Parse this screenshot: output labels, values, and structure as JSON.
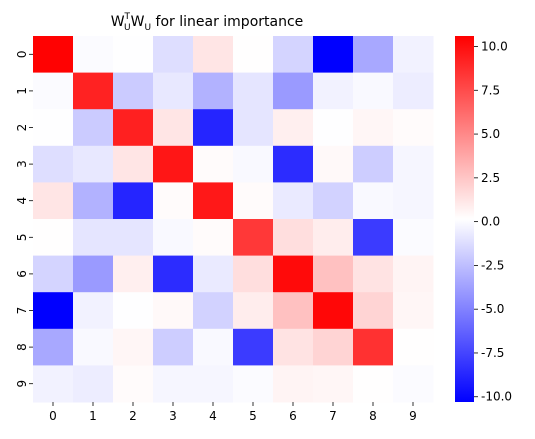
{
  "chart_data": {
    "type": "heatmap",
    "title": "W_U^T W_U for linear importance",
    "title_parts": {
      "base_w1": "W",
      "sup": "T",
      "sub1": "U",
      "base_w2": "W",
      "sub2": "U",
      "rest": " for linear importance"
    },
    "x_categories": [
      "0",
      "1",
      "2",
      "3",
      "4",
      "5",
      "6",
      "7",
      "8",
      "9"
    ],
    "y_categories": [
      "0",
      "1",
      "2",
      "3",
      "4",
      "5",
      "6",
      "7",
      "8",
      "9"
    ],
    "values": [
      [
        10.5,
        0.0,
        0.1,
        -1.2,
        1.2,
        0.2,
        -1.6,
        -10.3,
        -3.4,
        -0.4
      ],
      [
        0.0,
        9.2,
        -2.0,
        -0.8,
        -3.0,
        -0.9,
        -4.0,
        -0.4,
        -0.1,
        -0.6
      ],
      [
        0.1,
        -2.0,
        9.3,
        1.2,
        -8.8,
        -0.9,
        0.8,
        0.1,
        0.5,
        0.3
      ],
      [
        -1.2,
        -0.8,
        1.2,
        9.7,
        0.3,
        -0.1,
        -8.5,
        0.4,
        -1.9,
        -0.2
      ],
      [
        1.2,
        -3.0,
        -8.8,
        0.3,
        9.6,
        0.3,
        -0.7,
        -1.7,
        -0.1,
        -0.2
      ],
      [
        0.2,
        -0.9,
        -0.9,
        -0.1,
        0.3,
        8.3,
        1.5,
        0.9,
        -7.9,
        0.0
      ],
      [
        -1.6,
        -4.0,
        0.8,
        -8.5,
        -0.7,
        1.5,
        10.2,
        2.7,
        1.3,
        0.6
      ],
      [
        -10.3,
        -0.4,
        0.1,
        0.4,
        -1.7,
        0.9,
        2.7,
        10.3,
        1.9,
        0.5
      ],
      [
        -3.4,
        -0.1,
        0.5,
        -1.9,
        -0.1,
        -7.9,
        1.3,
        1.9,
        8.6,
        0.2
      ],
      [
        -0.4,
        -0.6,
        0.3,
        -0.2,
        -0.2,
        0.0,
        0.6,
        0.5,
        0.2,
        0.0
      ]
    ],
    "vmin": -10.3,
    "vmax": 10.6,
    "colormap": "bwr",
    "colorbar_ticks": [
      "10.0",
      "7.5",
      "5.0",
      "2.5",
      "0.0",
      "-2.5",
      "-5.0",
      "-7.5",
      "-10.0"
    ],
    "colorbar_tick_values": [
      10.0,
      7.5,
      5.0,
      2.5,
      0.0,
      -2.5,
      -5.0,
      -7.5,
      -10.0
    ],
    "colors": {
      "low": "#0000ff",
      "mid": "#ffffff",
      "high": "#ff0000"
    },
    "grid": false
  }
}
